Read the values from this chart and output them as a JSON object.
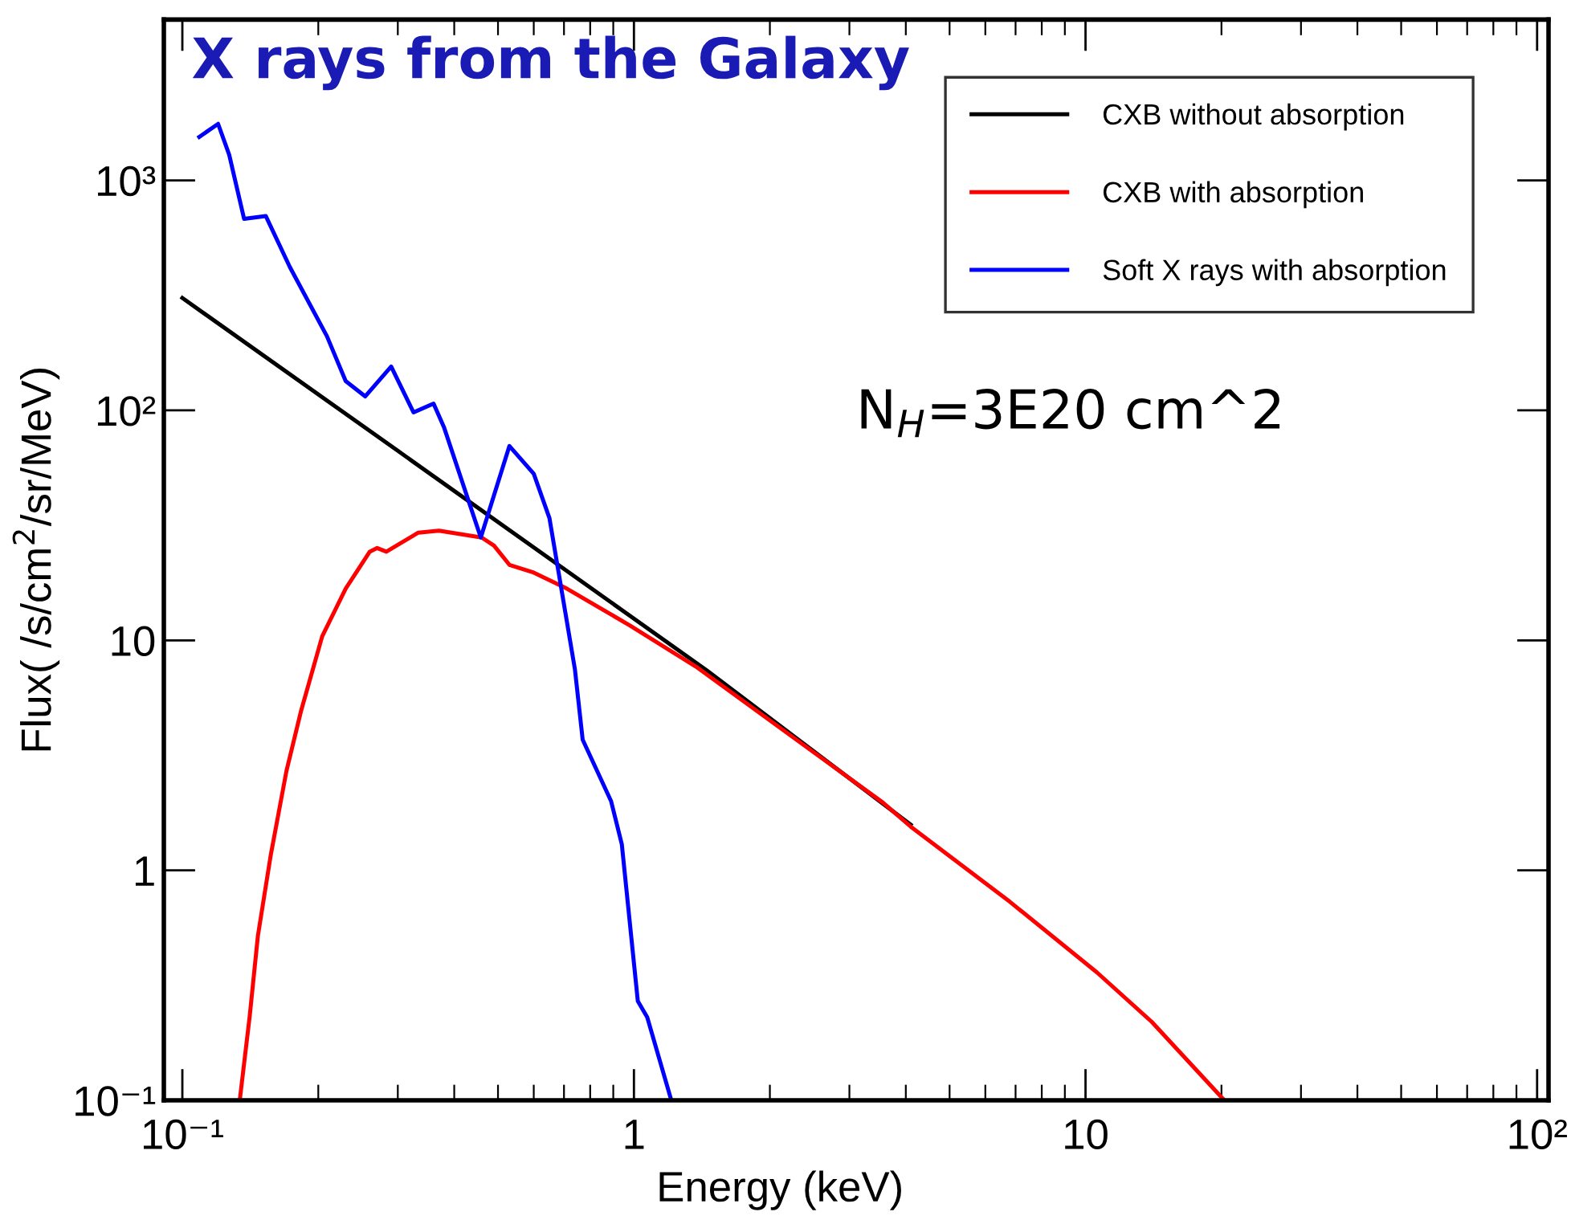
{
  "chart_data": {
    "type": "line",
    "title": "X rays from the Galaxy",
    "xlabel": "Energy (keV)",
    "ylabel": "Flux( /s/cm$^{2}$/sr/MeV)",
    "annotations": [
      "N$_{H}$=3E20 cm^2"
    ],
    "log": "xy",
    "grid": false,
    "legend": "top right",
    "marker": "none",
    "line_style": "solid",
    "xlim": [
      0.091,
      106
    ],
    "ylim": [
      0.1,
      5000
    ],
    "xticks": [
      {
        "value": 0.1,
        "label": "10⁻¹"
      },
      1,
      10,
      {
        "value": 100,
        "label": "10²"
      }
    ],
    "yticks": [
      {
        "value": 0.1,
        "label": "10⁻¹"
      },
      1,
      10,
      {
        "value": 100,
        "label": "10²"
      },
      {
        "value": 1000,
        "label": "10³"
      }
    ],
    "series": [
      {
        "name": "CXB without absorption",
        "color": "#000000",
        "x": [
          0.1,
          0.3,
          1.45,
          4.1
        ],
        "values": [
          308,
          66.7,
          7.4,
          1.58
        ]
      },
      {
        "name": "CXB with absorption",
        "color": "#ff0000",
        "x": [
          0.134,
          0.141,
          0.147,
          0.157,
          0.17,
          0.183,
          0.204,
          0.23,
          0.26,
          0.27,
          0.283,
          0.333,
          0.37,
          0.46,
          0.49,
          0.53,
          0.6,
          0.71,
          0.98,
          1.37,
          3.56,
          4.1,
          6.8,
          10.6,
          14.0,
          20.3
        ],
        "values": [
          0.1,
          0.233,
          0.52,
          1.17,
          2.7,
          4.9,
          10.4,
          16.8,
          24.3,
          25.2,
          24.3,
          29.4,
          30,
          28,
          25.8,
          21.3,
          19.7,
          16.8,
          11.6,
          7.7,
          1.97,
          1.55,
          0.73,
          0.36,
          0.22,
          0.1
        ]
      },
      {
        "name": "Soft X rays with absorption",
        "color": "#0000ff",
        "x": [
          0.109,
          0.12,
          0.127,
          0.137,
          0.153,
          0.173,
          0.209,
          0.23,
          0.254,
          0.29,
          0.325,
          0.36,
          0.38,
          0.458,
          0.53,
          0.6,
          0.65,
          0.74,
          0.77,
          0.89,
          0.94,
          1.02,
          1.07,
          1.21
        ],
        "values": [
          1545,
          1760,
          1290,
          680,
          700,
          420,
          210,
          134,
          115,
          155,
          98,
          107,
          84,
          28,
          70,
          53,
          34,
          7.5,
          3.7,
          2.0,
          1.3,
          0.27,
          0.23,
          0.1
        ]
      }
    ]
  }
}
